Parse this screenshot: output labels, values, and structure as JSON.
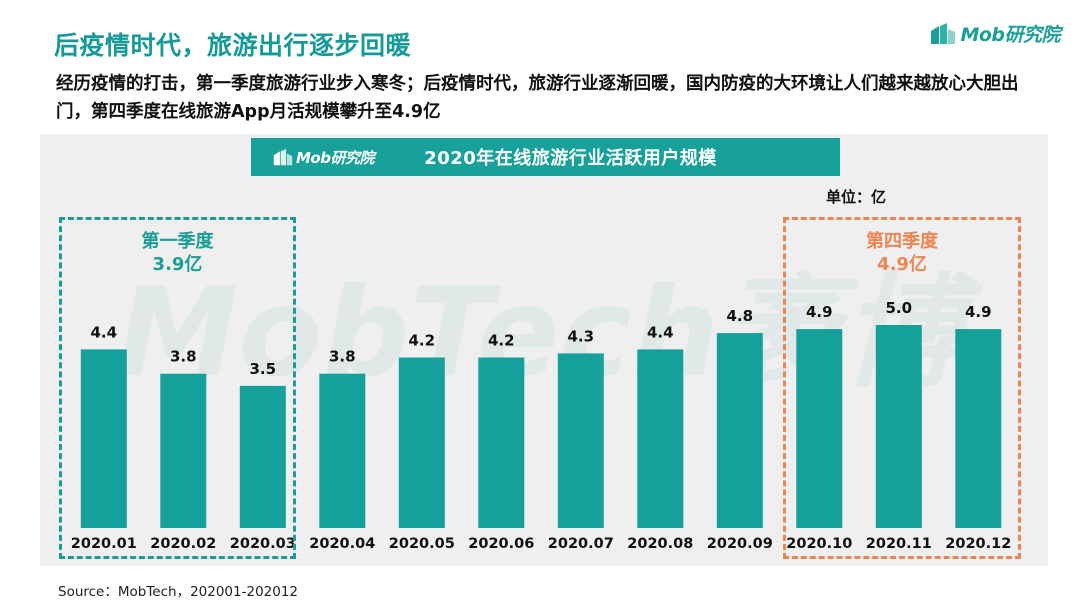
{
  "page": {
    "title": "后疫情时代，旅游出行逐步回暖",
    "subtitle": "经历疫情的打击，第一季度旅游行业步入寒冬；后疫情时代，旅游行业逐渐回暖，国内防疫的大环境让人们越来越放心大胆出门，第四季度在线旅游App月活规模攀升至4.9亿",
    "logo_text": "Mob研究院",
    "watermark": "MobTech袤博",
    "source": "Source：MobTech，202001-202012"
  },
  "chart_header": {
    "logo_text": "Mob研究院",
    "title": "2020年在线旅游行业活跃用户规模"
  },
  "unit_label": "单位：亿",
  "callouts": {
    "q1": {
      "name": "第一季度",
      "value": "3.9亿"
    },
    "q4": {
      "name": "第四季度",
      "value": "4.9亿"
    }
  },
  "colors": {
    "accent": "#18a09a",
    "bar": "#16a09b",
    "q4_accent": "#ee8551",
    "panel": "#efefef"
  },
  "chart_data": {
    "type": "bar",
    "title": "2020年在线旅游行业活跃用户规模",
    "unit": "单位：亿",
    "categories": [
      "2020.01",
      "2020.02",
      "2020.03",
      "2020.04",
      "2020.05",
      "2020.06",
      "2020.07",
      "2020.08",
      "2020.09",
      "2020.10",
      "2020.11",
      "2020.12"
    ],
    "values": [
      4.4,
      3.8,
      3.5,
      3.8,
      4.2,
      4.2,
      4.3,
      4.4,
      4.8,
      4.9,
      5.0,
      4.9
    ],
    "value_labels": [
      "4.4",
      "3.8",
      "3.5",
      "3.8",
      "4.2",
      "4.2",
      "4.3",
      "4.4",
      "4.8",
      "4.9",
      "5.0",
      "4.9"
    ],
    "xlabel": "",
    "ylabel": "",
    "grid": false,
    "legend": "none"
  }
}
